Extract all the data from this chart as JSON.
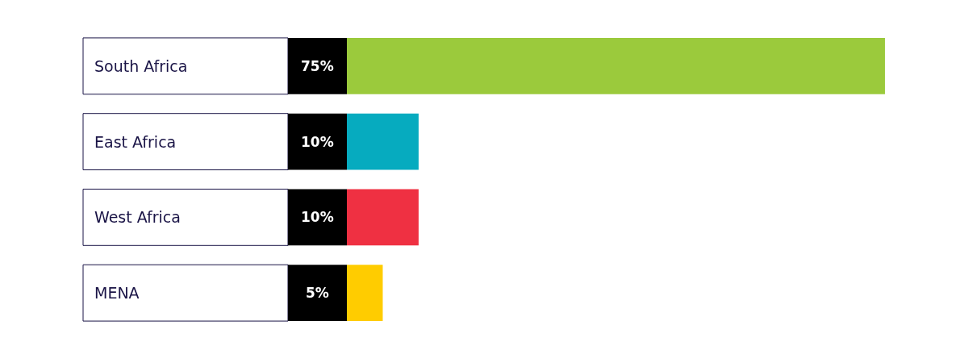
{
  "chart_data": {
    "type": "bar",
    "orientation": "horizontal",
    "categories": [
      "South Africa",
      "East Africa",
      "West Africa",
      "MENA"
    ],
    "values": [
      75,
      10,
      10,
      5
    ],
    "value_labels": [
      "75%",
      "10%",
      "10%",
      "5%"
    ],
    "colors": [
      "#9bca3c",
      "#06abbf",
      "#ef3042",
      "#ffcc00"
    ],
    "xlim": [
      0,
      75
    ],
    "tick_labels": "y"
  }
}
